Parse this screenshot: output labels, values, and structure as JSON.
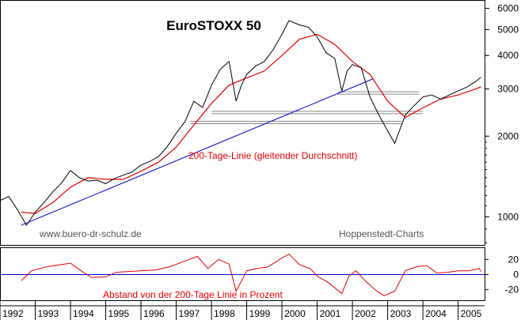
{
  "chart_data": [
    {
      "type": "line",
      "title": "EuroSTOXX 50",
      "yscale": "log",
      "ylim": [
        780,
        6400
      ],
      "xlim": [
        1992.0,
        2005.75
      ],
      "yticks": [
        "1000",
        "2000",
        "3000",
        "4000",
        "5000",
        "6000"
      ],
      "grid": false,
      "series": [
        {
          "name": "EuroSTOXX 50",
          "color": "#000000",
          "points": [
            [
              1992.0,
              1150
            ],
            [
              1992.25,
              1190
            ],
            [
              1992.5,
              1060
            ],
            [
              1992.75,
              930
            ],
            [
              1993.0,
              1040
            ],
            [
              1993.25,
              1130
            ],
            [
              1993.5,
              1240
            ],
            [
              1993.75,
              1340
            ],
            [
              1994.0,
              1490
            ],
            [
              1994.25,
              1400
            ],
            [
              1994.5,
              1360
            ],
            [
              1994.75,
              1370
            ],
            [
              1995.0,
              1330
            ],
            [
              1995.25,
              1390
            ],
            [
              1995.5,
              1430
            ],
            [
              1995.75,
              1470
            ],
            [
              1996.0,
              1560
            ],
            [
              1996.25,
              1610
            ],
            [
              1996.5,
              1680
            ],
            [
              1996.75,
              1830
            ],
            [
              1997.0,
              2050
            ],
            [
              1997.25,
              2270
            ],
            [
              1997.5,
              2700
            ],
            [
              1997.75,
              2560
            ],
            [
              1998.0,
              3100
            ],
            [
              1998.25,
              3550
            ],
            [
              1998.5,
              3800
            ],
            [
              1998.7,
              2700
            ],
            [
              1998.85,
              3100
            ],
            [
              1999.0,
              3400
            ],
            [
              1999.25,
              3650
            ],
            [
              1999.5,
              3800
            ],
            [
              1999.75,
              4200
            ],
            [
              2000.0,
              4800
            ],
            [
              2000.2,
              5400
            ],
            [
              2000.5,
              5200
            ],
            [
              2000.75,
              5100
            ],
            [
              2001.0,
              4700
            ],
            [
              2001.25,
              4100
            ],
            [
              2001.5,
              3900
            ],
            [
              2001.7,
              2950
            ],
            [
              2001.85,
              3500
            ],
            [
              2002.0,
              3700
            ],
            [
              2002.25,
              3600
            ],
            [
              2002.5,
              2800
            ],
            [
              2002.75,
              2400
            ],
            [
              2002.95,
              2150
            ],
            [
              2003.2,
              1880
            ],
            [
              2003.5,
              2400
            ],
            [
              2003.75,
              2600
            ],
            [
              2004.0,
              2800
            ],
            [
              2004.25,
              2850
            ],
            [
              2004.5,
              2750
            ],
            [
              2004.75,
              2850
            ],
            [
              2005.0,
              2950
            ],
            [
              2005.25,
              3050
            ],
            [
              2005.5,
              3200
            ],
            [
              2005.65,
              3320
            ]
          ]
        },
        {
          "name": "200-Tage-Linie (gleitender Durchschnitt)",
          "color": "#e00000",
          "points": [
            [
              1992.6,
              1040
            ],
            [
              1993.0,
              1030
            ],
            [
              1993.5,
              1130
            ],
            [
              1994.0,
              1290
            ],
            [
              1994.5,
              1400
            ],
            [
              1995.0,
              1380
            ],
            [
              1995.5,
              1380
            ],
            [
              1996.0,
              1480
            ],
            [
              1996.5,
              1600
            ],
            [
              1997.0,
              1820
            ],
            [
              1997.5,
              2200
            ],
            [
              1998.0,
              2650
            ],
            [
              1998.5,
              3100
            ],
            [
              1999.0,
              3300
            ],
            [
              1999.5,
              3500
            ],
            [
              2000.0,
              4000
            ],
            [
              2000.5,
              4600
            ],
            [
              2001.0,
              4800
            ],
            [
              2001.5,
              4400
            ],
            [
              2002.0,
              3800
            ],
            [
              2002.5,
              3400
            ],
            [
              2003.0,
              2700
            ],
            [
              2003.5,
              2350
            ],
            [
              2004.0,
              2550
            ],
            [
              2004.5,
              2750
            ],
            [
              2005.0,
              2850
            ],
            [
              2005.5,
              3000
            ],
            [
              2005.65,
              3060
            ]
          ]
        }
      ],
      "trendline": {
        "color": "#0000c8",
        "points": [
          [
            1992.6,
            930
          ],
          [
            2002.6,
            3280
          ]
        ]
      },
      "support_lines": [
        {
          "y": 2450,
          "x_range": [
            1998.0,
            2004.0
          ]
        },
        {
          "y": 2250,
          "x_range": [
            1997.4,
            2003.4
          ]
        },
        {
          "y": 2900,
          "x_range": [
            2001.6,
            2003.9
          ]
        }
      ],
      "annotations": [
        {
          "text": "200-Tage-Linie (gleitender Durchschnitt)",
          "color": "#e00000"
        },
        {
          "text": "www.buero-dr-schulz.de",
          "color": "#555555"
        },
        {
          "text": "Hoppenstedt-Charts",
          "color": "#555555"
        }
      ]
    },
    {
      "type": "line",
      "ylim": [
        -35,
        35
      ],
      "yticks": [
        "20",
        "0",
        "-20"
      ],
      "reference_line": 0,
      "series": [
        {
          "name": "Abstand von der 200-Tage Linie in Prozent",
          "color": "#e00000",
          "points": [
            [
              1992.6,
              -8
            ],
            [
              1992.9,
              5
            ],
            [
              1993.3,
              10
            ],
            [
              1993.7,
              13
            ],
            [
              1994.0,
              15
            ],
            [
              1994.3,
              5
            ],
            [
              1994.6,
              -4
            ],
            [
              1995.0,
              -3
            ],
            [
              1995.3,
              3
            ],
            [
              1995.6,
              4
            ],
            [
              1996.0,
              5
            ],
            [
              1996.4,
              6
            ],
            [
              1996.8,
              10
            ],
            [
              1997.2,
              17
            ],
            [
              1997.6,
              24
            ],
            [
              1997.9,
              8
            ],
            [
              1998.2,
              20
            ],
            [
              1998.5,
              14
            ],
            [
              1998.7,
              -22
            ],
            [
              1999.0,
              5
            ],
            [
              1999.3,
              8
            ],
            [
              1999.6,
              10
            ],
            [
              2000.0,
              22
            ],
            [
              2000.2,
              27
            ],
            [
              2000.5,
              13
            ],
            [
              2000.8,
              8
            ],
            [
              2001.0,
              -2
            ],
            [
              2001.3,
              -10
            ],
            [
              2001.7,
              -25
            ],
            [
              2001.9,
              -2
            ],
            [
              2002.1,
              5
            ],
            [
              2002.4,
              -10
            ],
            [
              2002.7,
              -22
            ],
            [
              2002.9,
              -28
            ],
            [
              2003.2,
              -22
            ],
            [
              2003.5,
              5
            ],
            [
              2003.8,
              10
            ],
            [
              2004.1,
              12
            ],
            [
              2004.4,
              2
            ],
            [
              2004.7,
              3
            ],
            [
              2005.0,
              5
            ],
            [
              2005.3,
              5
            ],
            [
              2005.6,
              8
            ],
            [
              2005.65,
              4
            ]
          ]
        }
      ]
    }
  ],
  "x_axis": {
    "labels": [
      "1992",
      "1993",
      "1994",
      "1995",
      "1996",
      "1997",
      "1998",
      "1999",
      "2000",
      "2001",
      "2002",
      "2003",
      "2004",
      "2005"
    ]
  }
}
